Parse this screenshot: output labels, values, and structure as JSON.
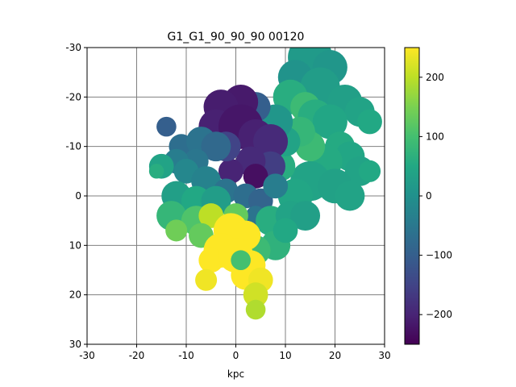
{
  "chart_data": {
    "type": "heatmap",
    "title": "G1_G1_90_90_90   00120",
    "xlabel": "kpc",
    "ylabel": "",
    "xlim": [
      -30,
      30
    ],
    "ylim": [
      30,
      -30
    ],
    "x_ticks": [
      "-30",
      "-20",
      "-10",
      "0",
      "10",
      "20",
      "30"
    ],
    "y_ticks": [
      "-30",
      "-20",
      "-10",
      "0",
      "10",
      "20",
      "30"
    ],
    "grid": true,
    "grid_color": "#808080",
    "colormap": "viridis",
    "colorbar": {
      "range": [
        -250,
        250
      ],
      "ticks": [
        "200",
        "100",
        "0",
        "−100",
        "−200"
      ],
      "tick_values": [
        200,
        100,
        0,
        -100,
        -200
      ]
    },
    "blobs": [
      {
        "x": 15,
        "y": -28,
        "r": 4.5,
        "v": 20
      },
      {
        "x": 19,
        "y": -26,
        "r": 3.5,
        "v": 10
      },
      {
        "x": 12,
        "y": -24,
        "r": 3.5,
        "v": 5
      },
      {
        "x": 17,
        "y": -22,
        "r": 4,
        "v": 25
      },
      {
        "x": 22,
        "y": -19,
        "r": 3.5,
        "v": 30
      },
      {
        "x": 25,
        "y": -17,
        "r": 3,
        "v": 40
      },
      {
        "x": 27,
        "y": -15,
        "r": 2.5,
        "v": 50
      },
      {
        "x": 11,
        "y": -20,
        "r": 3.5,
        "v": 60
      },
      {
        "x": 14,
        "y": -18,
        "r": 3,
        "v": 90
      },
      {
        "x": 16,
        "y": -16,
        "r": 3.5,
        "v": 60
      },
      {
        "x": 19,
        "y": -15,
        "r": 3.5,
        "v": 45
      },
      {
        "x": 21,
        "y": -10,
        "r": 3,
        "v": 55
      },
      {
        "x": 23,
        "y": -8,
        "r": 3,
        "v": 45
      },
      {
        "x": 25,
        "y": -5,
        "r": 3,
        "v": 40
      },
      {
        "x": 27,
        "y": -5,
        "r": 2.2,
        "v": 50
      },
      {
        "x": 18,
        "y": -7,
        "r": 3.5,
        "v": 55
      },
      {
        "x": 15,
        "y": -10,
        "r": 3,
        "v": 90
      },
      {
        "x": 13,
        "y": -13,
        "r": 3,
        "v": 80
      },
      {
        "x": 15,
        "y": -3,
        "r": 4,
        "v": 40
      },
      {
        "x": 20,
        "y": -2,
        "r": 3.5,
        "v": 35
      },
      {
        "x": 23,
        "y": 0,
        "r": 3,
        "v": 40
      },
      {
        "x": 12,
        "y": 0,
        "r": 3.5,
        "v": 45
      },
      {
        "x": 9,
        "y": -6,
        "r": 3,
        "v": 60
      },
      {
        "x": 10,
        "y": -11,
        "r": 3,
        "v": 40
      },
      {
        "x": 8,
        "y": -15,
        "r": 3.5,
        "v": 10
      },
      {
        "x": 4,
        "y": -18,
        "r": 3,
        "v": -100
      },
      {
        "x": 1,
        "y": -19,
        "r": 3.5,
        "v": -215
      },
      {
        "x": -3,
        "y": -18,
        "r": 3.5,
        "v": -210
      },
      {
        "x": -4,
        "y": -14,
        "r": 3.5,
        "v": -205
      },
      {
        "x": 1,
        "y": -14,
        "r": 4.5,
        "v": -220
      },
      {
        "x": 4,
        "y": -12,
        "r": 3.5,
        "v": -205
      },
      {
        "x": 7,
        "y": -11,
        "r": 3.5,
        "v": -190
      },
      {
        "x": 7,
        "y": -6,
        "r": 3,
        "v": -160
      },
      {
        "x": 3,
        "y": -7,
        "r": 3,
        "v": -190
      },
      {
        "x": -1,
        "y": -5,
        "r": 2.5,
        "v": -200
      },
      {
        "x": 4,
        "y": -4,
        "r": 2.5,
        "v": -230
      },
      {
        "x": -2,
        "y": -10,
        "r": 3,
        "v": -150
      },
      {
        "x": -14,
        "y": -14,
        "r": 2,
        "v": -100
      },
      {
        "x": -11,
        "y": -10,
        "r": 2.5,
        "v": -70
      },
      {
        "x": -7,
        "y": -11,
        "r": 3,
        "v": -60
      },
      {
        "x": -4,
        "y": -10,
        "r": 3,
        "v": -80
      },
      {
        "x": -8,
        "y": -7,
        "r": 2.5,
        "v": -55
      },
      {
        "x": -12,
        "y": -7,
        "r": 2.5,
        "v": -40
      },
      {
        "x": -15,
        "y": -6,
        "r": 2.5,
        "v": 40
      },
      {
        "x": -16,
        "y": -5,
        "r": 1.5,
        "v": 60
      },
      {
        "x": -10,
        "y": -5,
        "r": 2.5,
        "v": -20
      },
      {
        "x": -6,
        "y": -3,
        "r": 3,
        "v": -30
      },
      {
        "x": -2,
        "y": -1,
        "r": 2.5,
        "v": -60
      },
      {
        "x": 2,
        "y": 0,
        "r": 2.5,
        "v": -70
      },
      {
        "x": 5,
        "y": 1,
        "r": 2.5,
        "v": -90
      },
      {
        "x": 8,
        "y": -2,
        "r": 2.5,
        "v": -40
      },
      {
        "x": 4,
        "y": 4,
        "r": 2,
        "v": -60
      },
      {
        "x": -12,
        "y": 0,
        "r": 3,
        "v": 30
      },
      {
        "x": -8,
        "y": 1,
        "r": 3,
        "v": 50
      },
      {
        "x": -4,
        "y": 1,
        "r": 3,
        "v": 25
      },
      {
        "x": -13,
        "y": 4,
        "r": 3,
        "v": 80
      },
      {
        "x": -8,
        "y": 5,
        "r": 3,
        "v": 110
      },
      {
        "x": -5,
        "y": 4,
        "r": 2.5,
        "v": 200
      },
      {
        "x": -12,
        "y": 7,
        "r": 2.2,
        "v": 140
      },
      {
        "x": -7,
        "y": 8,
        "r": 2.5,
        "v": 130
      },
      {
        "x": 0,
        "y": 4,
        "r": 2.5,
        "v": 130
      },
      {
        "x": 7,
        "y": 5,
        "r": 3,
        "v": 60
      },
      {
        "x": 11,
        "y": 4,
        "r": 3,
        "v": 40
      },
      {
        "x": 14,
        "y": 4,
        "r": 3,
        "v": 30
      },
      {
        "x": 8,
        "y": 10,
        "r": 3,
        "v": 70
      },
      {
        "x": 4,
        "y": 11,
        "r": 3,
        "v": 90
      },
      {
        "x": 10,
        "y": 7,
        "r": 2.5,
        "v": 50
      },
      {
        "x": -1,
        "y": 7,
        "r": 3.5,
        "v": 250
      },
      {
        "x": 2,
        "y": 8,
        "r": 3,
        "v": 250
      },
      {
        "x": -3,
        "y": 11,
        "r": 3.5,
        "v": 250
      },
      {
        "x": -5,
        "y": 13,
        "r": 2.5,
        "v": 250
      },
      {
        "x": 0,
        "y": 12,
        "r": 3.5,
        "v": 250
      },
      {
        "x": 3,
        "y": 14,
        "r": 3,
        "v": 250
      },
      {
        "x": 2,
        "y": 16,
        "r": 3,
        "v": 250
      },
      {
        "x": 5,
        "y": 17,
        "r": 2.5,
        "v": 240
      },
      {
        "x": 4,
        "y": 20,
        "r": 2.5,
        "v": 215
      },
      {
        "x": 4,
        "y": 23,
        "r": 2,
        "v": 190
      },
      {
        "x": -6,
        "y": 17,
        "r": 2.2,
        "v": 240
      },
      {
        "x": 1,
        "y": 13,
        "r": 2,
        "v": 100
      }
    ]
  }
}
